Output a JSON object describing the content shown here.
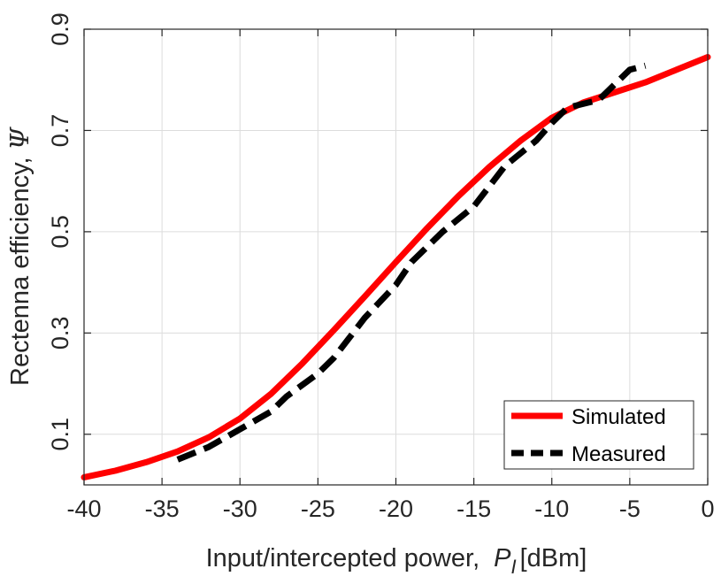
{
  "chart_data": {
    "type": "line",
    "xlabel_main": "Input/intercepted power,",
    "xlabel_symbol": "P",
    "xlabel_subscript": "I",
    "xlabel_unit": "[dBm]",
    "ylabel_main": "Rectenna efficiency,",
    "ylabel_symbol": "Ψ",
    "xlim": [
      -40,
      0
    ],
    "ylim": [
      0,
      0.9
    ],
    "xticks": [
      -40,
      -35,
      -30,
      -25,
      -20,
      -15,
      -10,
      -5,
      0
    ],
    "xtick_labels": [
      "-40",
      "-35",
      "-30",
      "-25",
      "-20",
      "-15",
      "-10",
      "-5",
      "0"
    ],
    "yticks": [
      0.1,
      0.3,
      0.5,
      0.7,
      0.9
    ],
    "ytick_labels": [
      "0.1",
      "0.3",
      "0.5",
      "0.7",
      "0.9"
    ],
    "grid": true,
    "legend_position": "bottom-right",
    "series": [
      {
        "name": "Simulated",
        "color": "#ff0000",
        "style": "solid",
        "x": [
          -40,
          -38,
          -36,
          -34,
          -32,
          -30,
          -28,
          -26,
          -24,
          -22,
          -20,
          -18,
          -16,
          -14,
          -12,
          -10,
          -8,
          -6,
          -4,
          -2,
          0
        ],
        "y": [
          0.015,
          0.028,
          0.045,
          0.066,
          0.094,
          0.131,
          0.18,
          0.24,
          0.305,
          0.372,
          0.44,
          0.507,
          0.57,
          0.628,
          0.68,
          0.725,
          0.755,
          0.775,
          0.795,
          0.82,
          0.845
        ]
      },
      {
        "name": "Measured",
        "color": "#000000",
        "style": "dashed",
        "x": [
          -34,
          -32,
          -30,
          -28,
          -27,
          -25,
          -24,
          -22,
          -20,
          -19,
          -17,
          -15,
          -13,
          -11,
          -10,
          -9,
          -7,
          -6,
          -5,
          -4
        ],
        "y": [
          0.05,
          0.075,
          0.11,
          0.145,
          0.175,
          0.22,
          0.25,
          0.33,
          0.395,
          0.44,
          0.5,
          0.55,
          0.63,
          0.68,
          0.715,
          0.745,
          0.76,
          0.79,
          0.82,
          0.828
        ]
      }
    ]
  }
}
